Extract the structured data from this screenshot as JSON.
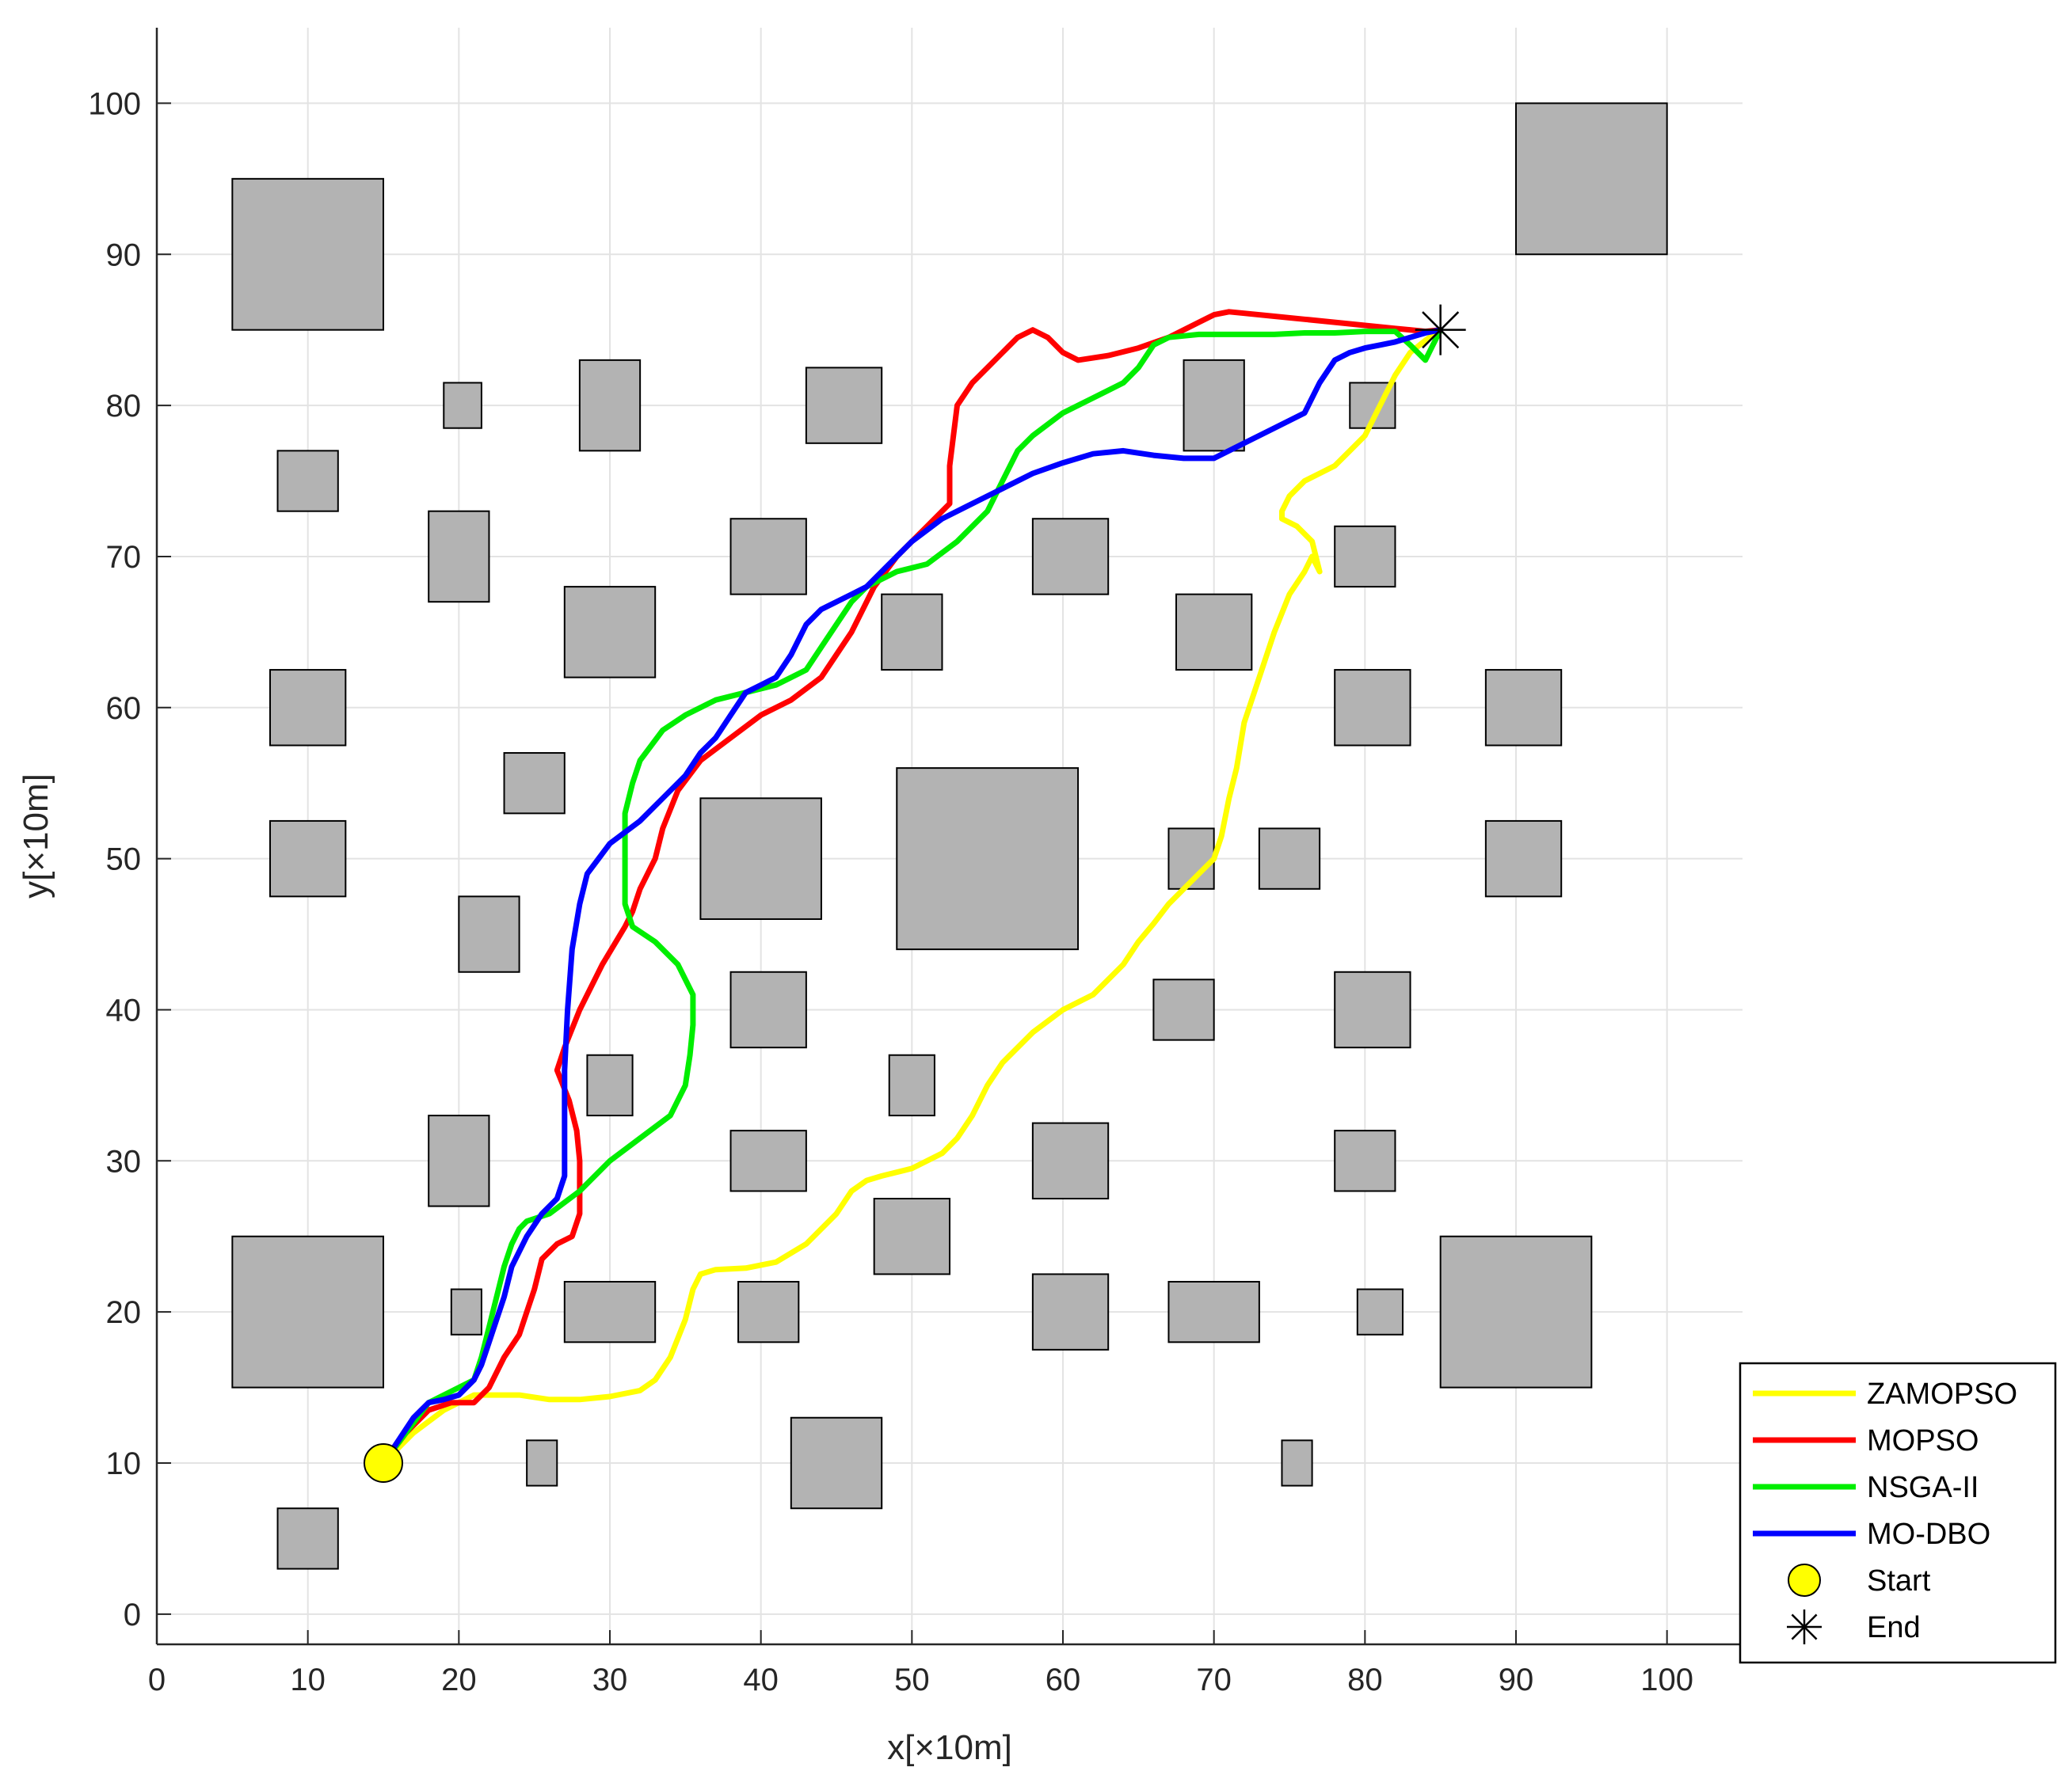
{
  "chart_data": {
    "type": "line",
    "xlabel": "x[×10m]",
    "ylabel": "y[×10m]",
    "xlim": [
      0,
      105
    ],
    "ylim": [
      -2,
      105
    ],
    "xticks": [
      0,
      10,
      20,
      30,
      40,
      50,
      60,
      70,
      80,
      90,
      100
    ],
    "yticks": [
      0,
      10,
      20,
      30,
      40,
      50,
      60,
      70,
      80,
      90,
      100
    ],
    "grid": true,
    "legend_position": "bottom-right",
    "colors": {
      "obstacle_fill": "#b3b3b3",
      "obstacle_edge": "#000000",
      "grid": "#e3e3e3",
      "start_marker": "#ffff00"
    },
    "obstacles": [
      [
        5,
        85,
        15,
        95
      ],
      [
        90,
        90,
        100,
        100
      ],
      [
        19,
        78.5,
        21.5,
        81.5
      ],
      [
        28,
        77,
        32,
        83
      ],
      [
        43,
        77.5,
        48,
        82.5
      ],
      [
        68,
        77,
        72,
        83
      ],
      [
        79,
        78.5,
        82,
        81.5
      ],
      [
        8,
        73,
        12,
        77
      ],
      [
        18,
        67,
        22,
        73
      ],
      [
        38,
        67.5,
        43,
        72.5
      ],
      [
        58,
        67.5,
        63,
        72.5
      ],
      [
        78,
        68,
        82,
        72
      ],
      [
        27,
        62,
        33,
        68
      ],
      [
        48,
        62.5,
        52,
        67.5
      ],
      [
        67.5,
        62.5,
        72.5,
        67.5
      ],
      [
        7.5,
        57.5,
        12.5,
        62.5
      ],
      [
        78,
        57.5,
        83,
        62.5
      ],
      [
        88,
        57.5,
        93,
        62.5
      ],
      [
        23,
        53,
        27,
        57
      ],
      [
        36,
        46,
        44,
        54
      ],
      [
        49,
        44,
        61,
        56
      ],
      [
        7.5,
        47.5,
        12.5,
        52.5
      ],
      [
        67,
        48,
        70,
        52
      ],
      [
        73,
        48,
        77,
        52
      ],
      [
        88,
        47.5,
        93,
        52.5
      ],
      [
        20,
        42.5,
        24,
        47.5
      ],
      [
        38,
        37.5,
        43,
        42.5
      ],
      [
        66,
        38,
        70,
        42
      ],
      [
        78,
        37.5,
        83,
        42.5
      ],
      [
        28.5,
        33,
        31.5,
        37
      ],
      [
        48.5,
        33,
        51.5,
        37
      ],
      [
        18,
        27,
        22,
        33
      ],
      [
        38,
        28,
        43,
        32
      ],
      [
        58,
        27.5,
        63,
        32.5
      ],
      [
        78,
        28,
        82,
        32
      ],
      [
        47.5,
        22.5,
        52.5,
        27.5
      ],
      [
        5,
        15,
        15,
        25
      ],
      [
        85,
        15,
        95,
        25
      ],
      [
        19.5,
        18.5,
        21.5,
        21.5
      ],
      [
        27,
        18,
        33,
        22
      ],
      [
        38.5,
        18,
        42.5,
        22
      ],
      [
        58,
        17.5,
        63,
        22.5
      ],
      [
        67,
        18,
        73,
        22
      ],
      [
        79.5,
        18.5,
        82.5,
        21.5
      ],
      [
        24.5,
        8.5,
        26.5,
        11.5
      ],
      [
        42,
        7,
        48,
        13
      ],
      [
        74.5,
        8.5,
        76.5,
        11.5
      ],
      [
        8,
        3,
        12,
        7
      ]
    ],
    "series": [
      {
        "name": "ZAMOPSO",
        "color": "#ffff00",
        "x": [
          15,
          17,
          19,
          21,
          24,
          26,
          28,
          30,
          32,
          33,
          34,
          35,
          35.5,
          36,
          37,
          39,
          41,
          43,
          45,
          46,
          47,
          48,
          50,
          52,
          53,
          54,
          55,
          56,
          58,
          60,
          62,
          64,
          65,
          66,
          67,
          68,
          69,
          70,
          70.5,
          71,
          71.5,
          72,
          73,
          74,
          75,
          76,
          76.5,
          77,
          76.5,
          75.5,
          74.5,
          74.5,
          75,
          76,
          77,
          78,
          79,
          80,
          81,
          82,
          83,
          84,
          85
        ],
        "y": [
          10,
          12,
          13.5,
          14.5,
          14.5,
          14.2,
          14.2,
          14.4,
          14.8,
          15.5,
          17,
          19.5,
          21.5,
          22.5,
          22.8,
          22.9,
          23.3,
          24.5,
          26.5,
          28,
          28.7,
          29,
          29.5,
          30.5,
          31.5,
          33,
          35,
          36.5,
          38.5,
          40,
          41,
          43,
          44.5,
          45.7,
          47,
          48,
          49,
          50,
          51.5,
          54,
          56,
          59,
          62,
          65,
          67.5,
          69,
          70,
          69,
          71,
          72,
          72.5,
          73,
          74,
          75,
          75.5,
          76,
          77,
          78,
          80,
          82,
          83.5,
          84.3,
          85
        ]
      },
      {
        "name": "MOPSO",
        "color": "#ff0000",
        "x": [
          15,
          16.5,
          18,
          19.5,
          21,
          22,
          23,
          24,
          24.5,
          25,
          25.5,
          26.5,
          27.5,
          28,
          28,
          27.8,
          27.3,
          26.7,
          26.5,
          27,
          28,
          29.5,
          31,
          31.5,
          32,
          33,
          33.5,
          34.5,
          36,
          38,
          40,
          42,
          44,
          45,
          46,
          47.5,
          49,
          51,
          52.5,
          52.5,
          53,
          54,
          55,
          56,
          57,
          58,
          59,
          60,
          61,
          63,
          65,
          67,
          69,
          70,
          71,
          72,
          74,
          76,
          78,
          80,
          82,
          84,
          85
        ],
        "y": [
          10,
          12,
          13.5,
          14,
          14,
          15,
          17,
          18.5,
          20,
          21.5,
          23.5,
          24.5,
          25,
          26.5,
          30,
          32,
          34,
          35.5,
          36,
          37.5,
          40,
          43,
          45.5,
          46.5,
          48,
          50,
          52,
          54.5,
          56.5,
          58,
          59.5,
          60.5,
          62,
          63.5,
          65,
          68,
          70,
          72,
          73.5,
          76,
          80,
          81.5,
          82.5,
          83.5,
          84.5,
          85,
          84.5,
          83.5,
          83,
          83.3,
          83.8,
          84.5,
          85.5,
          86,
          86.2,
          86.1,
          85.9,
          85.7,
          85.5,
          85.3,
          85.1,
          84.9,
          85
        ]
      },
      {
        "name": "NSGA-II",
        "color": "#00ee00",
        "x": [
          15,
          16.5,
          18,
          20,
          21,
          21.5,
          22,
          22.5,
          23,
          23.5,
          24,
          24.5,
          26,
          28,
          30,
          32,
          34,
          35,
          35.3,
          35.5,
          35.5,
          35.5,
          34.5,
          33,
          31.5,
          31,
          31,
          31,
          31.5,
          32,
          33.5,
          35,
          37,
          39,
          41,
          43,
          44,
          45,
          46,
          47,
          49,
          51,
          53,
          55,
          56,
          57,
          58,
          60,
          62,
          64,
          65,
          66,
          67,
          68,
          69,
          70,
          72,
          74,
          76,
          78,
          80,
          82,
          83,
          84,
          84.5,
          85
        ],
        "y": [
          10,
          12,
          14,
          15,
          15.5,
          17,
          19,
          21,
          23,
          24.5,
          25.5,
          26,
          26.5,
          28,
          30,
          31.5,
          33,
          35,
          37,
          39,
          40,
          41,
          43,
          44.5,
          45.5,
          47,
          50,
          53,
          55,
          56.5,
          58.5,
          59.5,
          60.5,
          61,
          61.5,
          62.5,
          64,
          65.5,
          67,
          68,
          69,
          69.5,
          71,
          73,
          75,
          77,
          78,
          79.5,
          80.5,
          81.5,
          82.5,
          84,
          84.5,
          84.6,
          84.7,
          84.7,
          84.7,
          84.7,
          84.8,
          84.8,
          84.9,
          84.9,
          84,
          83,
          84,
          85
        ]
      },
      {
        "name": "MO-DBO",
        "color": "#0000ff",
        "x": [
          15,
          16,
          17,
          18,
          19,
          20,
          21,
          21.5,
          22,
          22.5,
          23,
          23.5,
          24.5,
          25.5,
          26.5,
          27,
          27,
          27,
          27.2,
          27.5,
          28,
          28.5,
          30,
          32,
          33.5,
          35,
          36,
          37,
          38,
          39,
          40,
          41,
          42,
          43,
          44,
          45,
          46,
          47,
          48,
          49,
          50,
          52,
          54,
          56,
          58,
          60,
          62,
          64,
          66,
          68,
          70,
          72,
          74,
          76,
          77,
          78,
          79,
          80,
          81,
          82,
          83,
          84,
          85
        ],
        "y": [
          10,
          11.5,
          13,
          14,
          14.2,
          14.5,
          15.5,
          16.5,
          18,
          19.5,
          21,
          23,
          25,
          26.5,
          27.5,
          29,
          32,
          36,
          40,
          44,
          47,
          49,
          51,
          52.5,
          54,
          55.5,
          57,
          58,
          59.5,
          61,
          61.5,
          62,
          63.5,
          65.5,
          66.5,
          67,
          67.5,
          68,
          69,
          70,
          71,
          72.5,
          73.5,
          74.5,
          75.5,
          76.2,
          76.8,
          77,
          76.7,
          76.5,
          76.5,
          77.5,
          78.5,
          79.5,
          81.5,
          83,
          83.5,
          83.8,
          84,
          84.2,
          84.5,
          84.8,
          85
        ]
      }
    ],
    "start": {
      "name": "Start",
      "x": 15,
      "y": 10
    },
    "end": {
      "name": "End",
      "x": 85,
      "y": 85
    }
  }
}
